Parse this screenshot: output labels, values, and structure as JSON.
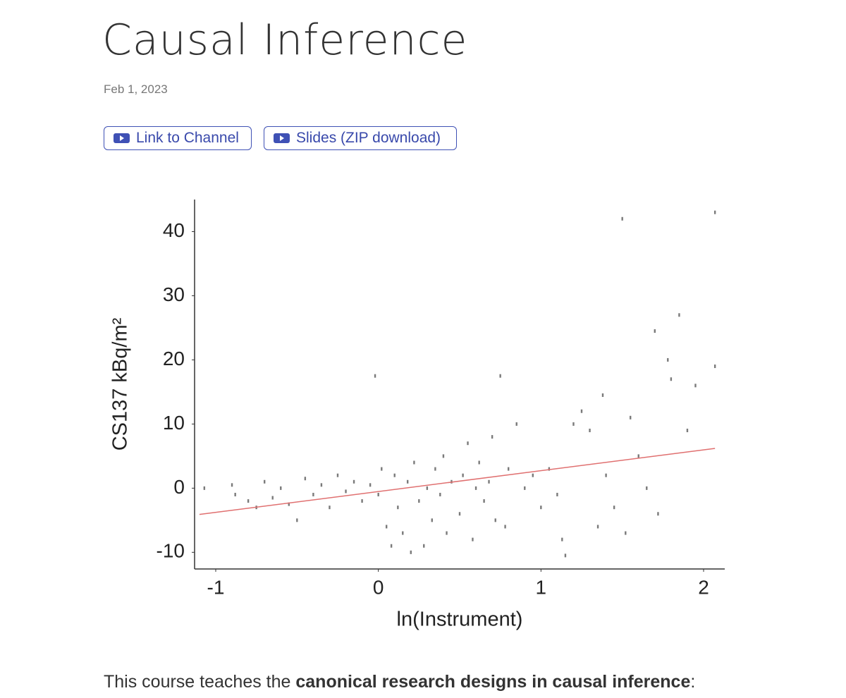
{
  "header": {
    "title": "Causal Inference",
    "date": "Feb 1, 2023"
  },
  "buttons": [
    "Link to Channel",
    "Slides (ZIP download)"
  ],
  "chart_data": {
    "type": "scatter",
    "xlabel": "ln(Instrument)",
    "ylabel": "CS137 kBq/m²",
    "xlim": [
      -1.13,
      2.13
    ],
    "ylim": [
      -12.6,
      45
    ],
    "xticks": [
      -1,
      0,
      1,
      2
    ],
    "yticks": [
      -10,
      0,
      10,
      20,
      30,
      40
    ],
    "series": [
      {
        "color": "#7a7a7a",
        "x": [
          -1.07,
          -0.9,
          -0.88,
          -0.8,
          -0.75,
          -0.7,
          -0.65,
          -0.6,
          -0.55,
          -0.5,
          -0.45,
          -0.4,
          -0.35,
          -0.3,
          -0.25,
          -0.2,
          -0.15,
          -0.1,
          -0.05,
          -0.02,
          0,
          0.02,
          0.05,
          0.08,
          0.1,
          0.12,
          0.15,
          0.18,
          0.2,
          0.22,
          0.25,
          0.28,
          0.3,
          0.33,
          0.35,
          0.38,
          0.4,
          0.42,
          0.45,
          0.5,
          0.52,
          0.55,
          0.58,
          0.6,
          0.62,
          0.65,
          0.68,
          0.7,
          0.72,
          0.75,
          0.78,
          0.8,
          0.85,
          0.9,
          0.95,
          1.0,
          1.05,
          1.1,
          1.13,
          1.15,
          1.2,
          1.25,
          1.3,
          1.35,
          1.38,
          1.4,
          1.45,
          1.5,
          1.52,
          1.55,
          1.6,
          1.65,
          1.7,
          1.72,
          1.78,
          1.8,
          1.85,
          1.9,
          1.95,
          2.07,
          2.07
        ],
        "values": [
          0,
          0.5,
          -1,
          -2,
          -3,
          1,
          -1.5,
          0,
          -2.5,
          -5,
          1.5,
          -1,
          0.5,
          -3,
          2,
          -0.5,
          1,
          -2,
          0.5,
          17.5,
          -1,
          3,
          -6,
          -9,
          2,
          -3,
          -7,
          1,
          -10,
          4,
          -2,
          -9,
          0,
          -5,
          3,
          -1,
          5,
          -7,
          1,
          -4,
          2,
          7,
          -8,
          0,
          4,
          -2,
          1,
          8,
          -5,
          17.5,
          -6,
          3,
          10,
          0,
          2,
          -3,
          3,
          -1,
          -8,
          -10.5,
          10,
          12,
          9,
          -6,
          14.5,
          2,
          -3,
          42,
          -7,
          11,
          5,
          0,
          24.5,
          -4,
          20,
          17,
          27,
          9,
          16,
          43,
          19
        ]
      },
      {
        "color": "#e07070",
        "x": [
          -1.1,
          2.07
        ],
        "values": [
          -4.1,
          6.2
        ]
      }
    ]
  },
  "body": {
    "paragraph": [
      "This course teaches the ",
      "canonical research designs in causal inference",
      ":"
    ]
  }
}
